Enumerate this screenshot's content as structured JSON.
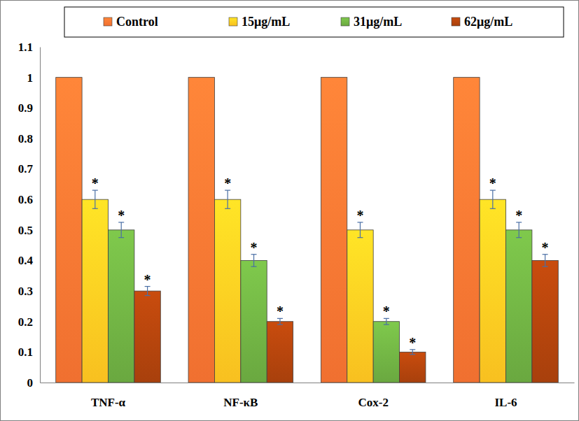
{
  "chart_data": {
    "type": "bar",
    "categories": [
      "TNF-α",
      "NF-κB",
      "Cox-2",
      "IL-6"
    ],
    "series": [
      {
        "name": "Control",
        "color": "#f07030",
        "values": [
          1,
          1,
          1,
          1
        ]
      },
      {
        "name": "15μg/mL",
        "color": "#f8c020",
        "values": [
          0.6,
          0.6,
          0.5,
          0.6
        ],
        "errors": [
          0.03,
          0.03,
          0.025,
          0.03
        ],
        "annotations": [
          "*",
          "*",
          "*",
          "*"
        ]
      },
      {
        "name": "31μg/mL",
        "color": "#6aa840",
        "values": [
          0.5,
          0.4,
          0.2,
          0.5
        ],
        "errors": [
          0.025,
          0.02,
          0.01,
          0.025
        ],
        "annotations": [
          "*",
          "*",
          "*",
          "*"
        ]
      },
      {
        "name": "62μg/mL",
        "color": "#a8400c",
        "values": [
          0.3,
          0.2,
          0.1,
          0.4
        ],
        "errors": [
          0.015,
          0.01,
          0.008,
          0.02
        ],
        "annotations": [
          "*",
          "*",
          "*",
          "*"
        ]
      }
    ],
    "ylim": [
      0,
      1.1
    ],
    "yticks": [
      0,
      0.1,
      0.2,
      0.3,
      0.4,
      0.5,
      0.6,
      0.7,
      0.8,
      0.9,
      1,
      1.1
    ],
    "grid": false,
    "legend": "top"
  }
}
